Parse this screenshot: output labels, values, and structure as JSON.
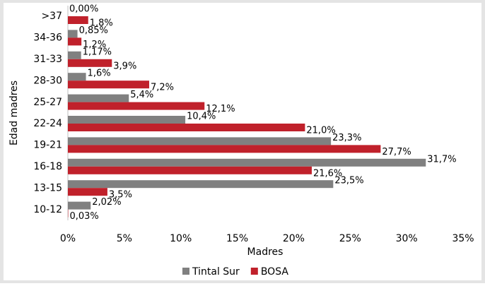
{
  "chart_data": {
    "type": "bar",
    "orientation": "horizontal",
    "x_label": "Madres",
    "y_label": "Edad madres",
    "categories": [
      ">37",
      "34-36",
      "31-33",
      "28-30",
      "25-27",
      "22-24",
      "19-21",
      "16-18",
      "13-15",
      "10-12"
    ],
    "series": [
      {
        "name": "Tintal Sur",
        "color": "#808080",
        "values": [
          0.0,
          0.85,
          1.17,
          1.6,
          5.4,
          10.4,
          23.3,
          31.7,
          23.5,
          2.02
        ],
        "value_labels": [
          "0,00%",
          "0,85%",
          "1,17%",
          "1,6%",
          "5,4%",
          "10,4%",
          "23,3%",
          "31,7%",
          "23,5%",
          "2,02%"
        ]
      },
      {
        "name": "BOSA",
        "color": "#c0212b",
        "values": [
          1.8,
          1.2,
          3.9,
          7.2,
          12.1,
          21.0,
          27.7,
          21.6,
          3.5,
          0.03
        ],
        "value_labels": [
          "1,8%",
          "1,2%",
          "3,9%",
          "7,2%",
          "12,1%",
          "21,0%",
          "27,7%",
          "21,6%",
          "3,5%",
          "0,03%"
        ]
      }
    ],
    "xlim": [
      0,
      35
    ],
    "xticks": [
      {
        "value": 0,
        "label": "0%"
      },
      {
        "value": 5,
        "label": "5%"
      },
      {
        "value": 10,
        "label": "10%"
      },
      {
        "value": 15,
        "label": "15%"
      },
      {
        "value": 20,
        "label": "20%"
      },
      {
        "value": 25,
        "label": "25%"
      },
      {
        "value": 30,
        "label": "30%"
      },
      {
        "value": 35,
        "label": "35%"
      }
    ],
    "legend": "bottom"
  }
}
